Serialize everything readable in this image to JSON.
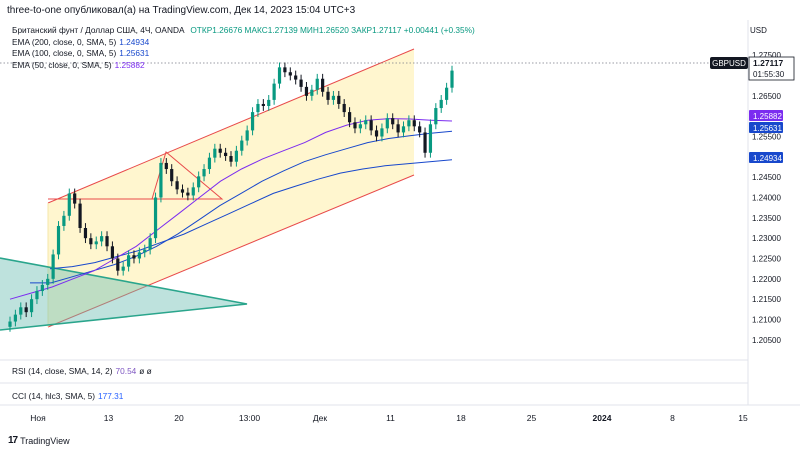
{
  "header": {
    "published": "three-to-one опубликовал(а) на TradingView.com, Дек 14, 2023 15:04 UTC+3",
    "symbol": "Британский фунт / Доллар США, 4Ч, OANDA",
    "ohlc": "ОТКР1.26676  МАКС1.27139  МИН1.26520  ЗАКР1.27117  +0.00441 (+0.35%)",
    "up_color": "#089981"
  },
  "legend": [
    {
      "label": "EMA (200, close, 0, SMA, 5)",
      "value": "1.24934",
      "color": "#1848cc"
    },
    {
      "label": "EMA (100, close, 0, SMA, 5)",
      "value": "1.25631",
      "color": "#1848cc"
    },
    {
      "label": "EMA (50, close, 0, SMA, 5)",
      "value": "1.25882",
      "color": "#7b2cf0"
    }
  ],
  "axis": {
    "currency": "USD",
    "y_ticks": [
      "1.27500",
      "1.27000",
      "1.26500",
      "1.26000",
      "1.25500",
      "1.25000",
      "1.24500",
      "1.24000",
      "1.23500",
      "1.23000",
      "1.22500",
      "1.22000",
      "1.21500",
      "1.21000",
      "1.20500"
    ],
    "x_ticks": [
      {
        "label": "Ноя",
        "bold": false
      },
      {
        "label": "13",
        "bold": false
      },
      {
        "label": "20",
        "bold": false
      },
      {
        "label": "13:00",
        "bold": false
      },
      {
        "label": "Дек",
        "bold": false
      },
      {
        "label": "11",
        "bold": false
      },
      {
        "label": "18",
        "bold": false
      },
      {
        "label": "25",
        "bold": false
      },
      {
        "label": "2024",
        "bold": true
      },
      {
        "label": "8",
        "bold": false
      },
      {
        "label": "15",
        "bold": false
      }
    ]
  },
  "price_labels": {
    "symbol": "GBPUSD",
    "last": "1.27117",
    "countdown": "01:55:30",
    "ema50": "1.25882",
    "ema100": "1.25631",
    "ema200": "1.24934"
  },
  "indicators": {
    "rsi_label": "RSI (14, close, SMA, 14, 2)",
    "rsi_value": "70.54",
    "rsi_extra": "ø  ø",
    "cci_label": "CCI (14, hlc3, SMA, 5)",
    "cci_value": "177.31"
  },
  "footer": {
    "logo_mark": "17",
    "logo_text": "TradingView"
  },
  "chart_data": {
    "type": "candlestick",
    "title": "Британский фунт / Доллар США, 4Ч, OANDA",
    "ylim": [
      1.2025,
      1.2775
    ],
    "candles_close": [
      1.2095,
      1.2112,
      1.213,
      1.2118,
      1.215,
      1.217,
      1.2185,
      1.22,
      1.226,
      1.233,
      1.2355,
      1.241,
      1.2385,
      1.2325,
      1.23,
      1.2285,
      1.2292,
      1.2305,
      1.228,
      1.225,
      1.222,
      1.223,
      1.2258,
      1.225,
      1.2265,
      1.2272,
      1.23,
      1.24,
      1.2485,
      1.247,
      1.244,
      1.242,
      1.2412,
      1.2405,
      1.2425,
      1.2452,
      1.247,
      1.2498,
      1.252,
      1.251,
      1.2502,
      1.2488,
      1.2515,
      1.254,
      1.2565,
      1.261,
      1.263,
      1.2625,
      1.264,
      1.268,
      1.272,
      1.2708,
      1.27,
      1.269,
      1.2672,
      1.265,
      1.2665,
      1.2692,
      1.266,
      1.264,
      1.265,
      1.263,
      1.261,
      1.2585,
      1.257,
      1.258,
      1.259,
      1.2565,
      1.255,
      1.257,
      1.2595,
      1.258,
      1.256,
      1.2575,
      1.259,
      1.2575,
      1.256,
      1.251,
      1.258,
      1.262,
      1.264,
      1.267,
      1.2712
    ],
    "ema50": [
      1.215,
      1.2165,
      1.218,
      1.22,
      1.222,
      1.225,
      1.228,
      1.232,
      1.236,
      1.24,
      1.244,
      1.247,
      1.2495,
      1.2515,
      1.2535,
      1.256,
      1.2578,
      1.259,
      1.2594,
      1.2593,
      1.259,
      1.2588
    ],
    "ema100": [
      1.219,
      1.219,
      1.2205,
      1.222,
      1.2235,
      1.2255,
      1.228,
      1.231,
      1.2345,
      1.238,
      1.241,
      1.244,
      1.2465,
      1.2488,
      1.2505,
      1.252,
      1.2535,
      1.2545,
      1.2552,
      1.2558,
      1.2563
    ],
    "ema200": [
      1.2225,
      1.223,
      1.224,
      1.2255,
      1.227,
      1.229,
      1.231,
      1.2335,
      1.236,
      1.2385,
      1.241,
      1.2428,
      1.2445,
      1.246,
      1.247,
      1.2478,
      1.2483,
      1.2488,
      1.2493
    ]
  }
}
